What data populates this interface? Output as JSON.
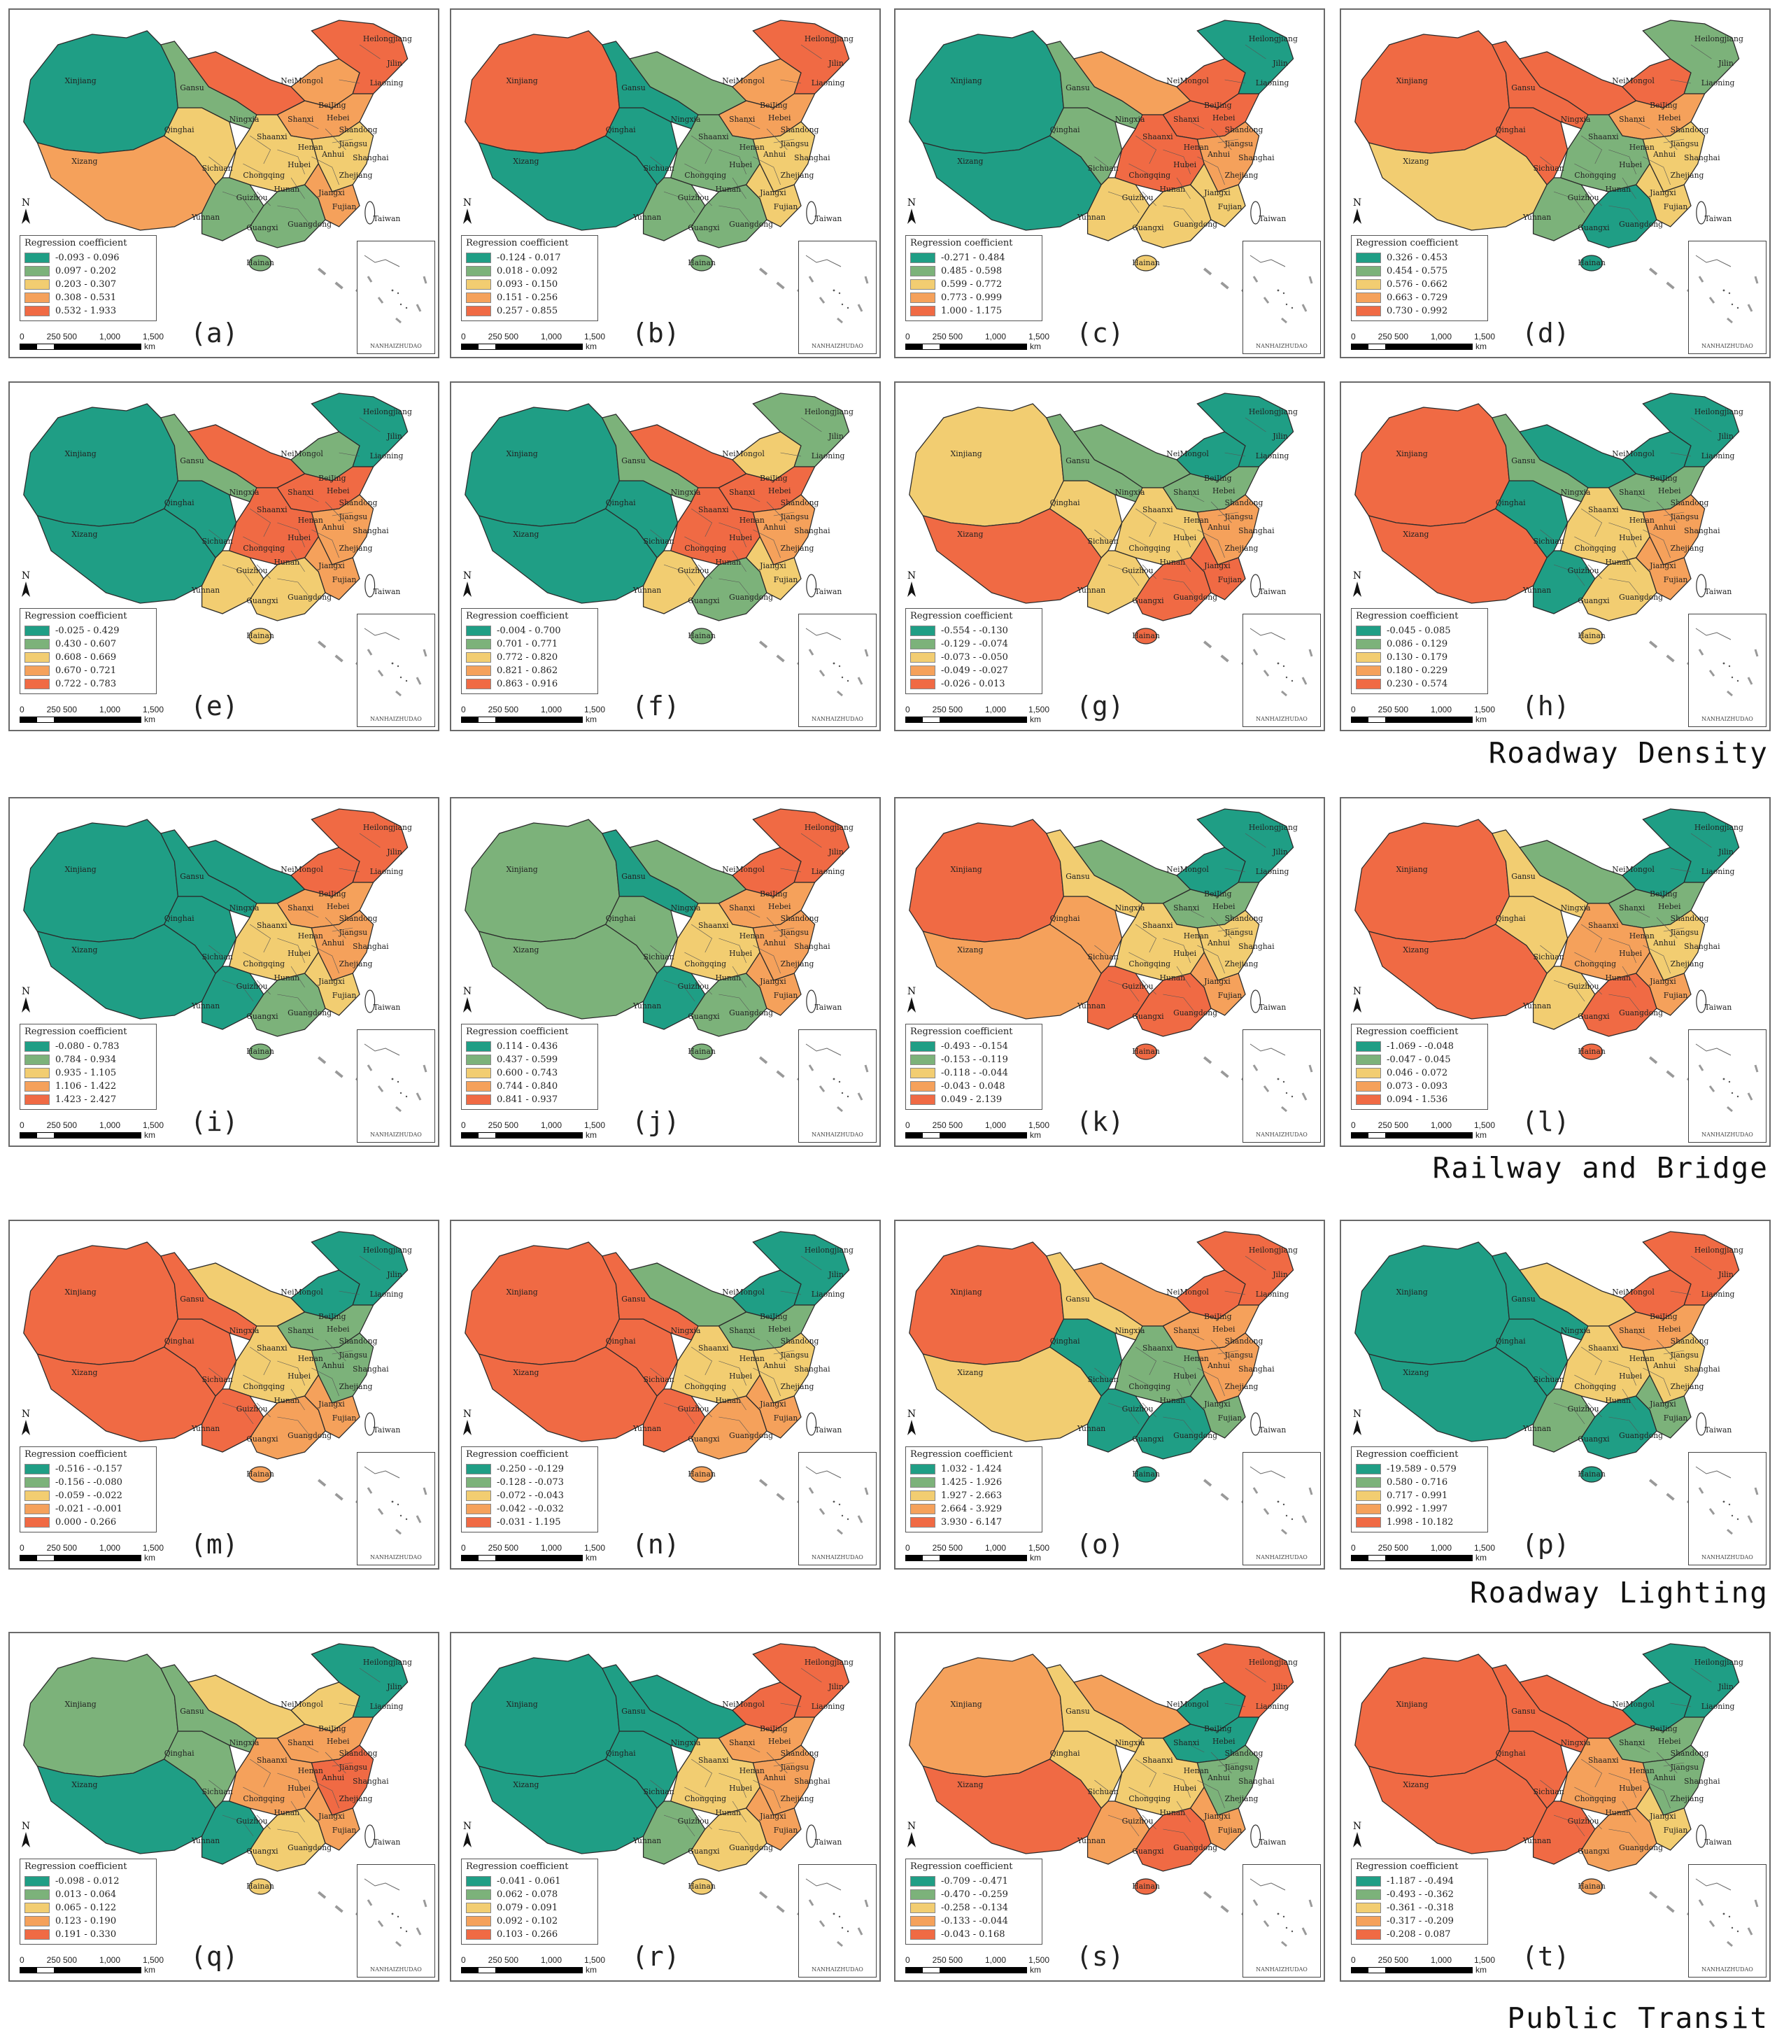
{
  "legend_title": "Regression coefficient",
  "inset_title": "NANHAIZHUDAO",
  "north_label": "N",
  "scale": {
    "ticks": [
      "0",
      "250 500",
      "1,000",
      "1,500"
    ],
    "unit": "km"
  },
  "colors": [
    "#1f9e85",
    "#7cb27a",
    "#f2cd71",
    "#f5a15b",
    "#f06a44"
  ],
  "province_labels": [
    "Xinjiang",
    "Xizang",
    "Qinghai",
    "Gansu",
    "NeiMongol",
    "Heilongjiang",
    "Jilin",
    "Liaoning",
    "BeiJing",
    "Hebei",
    "Shanxi",
    "Shaanxi",
    "Ningxia",
    "Henan",
    "Shandong",
    "Sichuan",
    "Chongqing",
    "Hubei",
    "Anhui",
    "Jiangsu",
    "Shanghai",
    "Zhejiang",
    "Hunan",
    "Jiangxi",
    "Fujian",
    "Guizhou",
    "Yunnan",
    "Guangxi",
    "Guangdong",
    "Hainan",
    "Taiwan"
  ],
  "row_labels": [
    {
      "text": "Roadway Density",
      "after_row": 1
    },
    {
      "text": "Railway and Bridge",
      "after_row": 2
    },
    {
      "text": "Roadway Lighting",
      "after_row": 3
    },
    {
      "text": "Public Transit",
      "after_row": 4
    }
  ],
  "panels": [
    {
      "label": "(a)",
      "classes": [
        "-0.093 - 0.096",
        "0.097 - 0.202",
        "0.203 - 0.307",
        "0.308 - 0.531",
        "0.532 - 1.933"
      ],
      "colors_by_region": {
        "xinjiang": 0,
        "xizang": 3,
        "qinghai": 2,
        "gansu": 1,
        "neimeng_w": 4,
        "neimeng_e": 3,
        "northeast": 4,
        "north": 3,
        "central": 2,
        "southwest": 1,
        "south": 1,
        "east": 2,
        "southeast": 3
      }
    },
    {
      "label": "(b)",
      "classes": [
        "-0.124 - 0.017",
        "0.018 - 0.092",
        "0.093 - 0.150",
        "0.151 - 0.256",
        "0.257 - 0.855"
      ],
      "colors_by_region": {
        "xinjiang": 4,
        "xizang": 0,
        "qinghai": 0,
        "gansu": 0,
        "neimeng_w": 1,
        "neimeng_e": 3,
        "northeast": 4,
        "north": 3,
        "central": 1,
        "southwest": 1,
        "south": 1,
        "east": 2,
        "southeast": 2
      }
    },
    {
      "label": "(c)",
      "classes": [
        "-0.271 - 0.484",
        "0.485 - 0.598",
        "0.599 - 0.772",
        "0.773 - 0.999",
        "1.000 - 1.175"
      ],
      "colors_by_region": {
        "xinjiang": 0,
        "xizang": 0,
        "qinghai": 1,
        "gansu": 1,
        "neimeng_w": 3,
        "neimeng_e": 4,
        "northeast": 0,
        "north": 4,
        "central": 4,
        "southwest": 2,
        "south": 2,
        "east": 3,
        "southeast": 2
      }
    },
    {
      "label": "(d)",
      "classes": [
        "0.326 - 0.453",
        "0.454 - 0.575",
        "0.576 - 0.662",
        "0.663 - 0.729",
        "0.730 - 0.992"
      ],
      "colors_by_region": {
        "xinjiang": 4,
        "xizang": 2,
        "qinghai": 4,
        "gansu": 4,
        "neimeng_w": 4,
        "neimeng_e": 4,
        "northeast": 1,
        "north": 3,
        "central": 1,
        "southwest": 1,
        "south": 0,
        "east": 2,
        "southeast": 2
      }
    },
    {
      "label": "(e)",
      "classes": [
        "-0.025 - 0.429",
        "0.430 - 0.607",
        "0.608 - 0.669",
        "0.670 - 0.721",
        "0.722 - 0.783"
      ],
      "colors_by_region": {
        "xinjiang": 0,
        "xizang": 0,
        "qinghai": 0,
        "gansu": 1,
        "neimeng_w": 4,
        "neimeng_e": 1,
        "northeast": 0,
        "north": 4,
        "central": 4,
        "southwest": 2,
        "south": 2,
        "east": 3,
        "southeast": 3
      }
    },
    {
      "label": "(f)",
      "classes": [
        "-0.004 - 0.700",
        "0.701 - 0.771",
        "0.772 - 0.820",
        "0.821 - 0.862",
        "0.863 - 0.916"
      ],
      "colors_by_region": {
        "xinjiang": 0,
        "xizang": 0,
        "qinghai": 0,
        "gansu": 1,
        "neimeng_w": 4,
        "neimeng_e": 2,
        "northeast": 1,
        "north": 4,
        "central": 4,
        "southwest": 2,
        "south": 1,
        "east": 3,
        "southeast": 2
      }
    },
    {
      "label": "(g)",
      "classes": [
        "-0.554 - -0.130",
        "-0.129 - -0.074",
        "-0.073 - -0.050",
        "-0.049 - -0.027",
        "-0.026 - 0.013"
      ],
      "colors_by_region": {
        "xinjiang": 2,
        "xizang": 4,
        "qinghai": 2,
        "gansu": 1,
        "neimeng_w": 1,
        "neimeng_e": 0,
        "northeast": 0,
        "north": 1,
        "central": 2,
        "southwest": 2,
        "south": 4,
        "east": 3,
        "southeast": 4
      }
    },
    {
      "label": "(h)",
      "classes": [
        "-0.045 - 0.085",
        "0.086 - 0.129",
        "0.130 - 0.179",
        "0.180 - 0.229",
        "0.230 - 0.574"
      ],
      "colors_by_region": {
        "xinjiang": 4,
        "xizang": 4,
        "qinghai": 0,
        "gansu": 1,
        "neimeng_w": 0,
        "neimeng_e": 0,
        "northeast": 0,
        "north": 1,
        "central": 2,
        "southwest": 0,
        "south": 2,
        "east": 3,
        "southeast": 3
      }
    },
    {
      "label": "(i)",
      "classes": [
        "-0.080 - 0.783",
        "0.784 - 0.934",
        "0.935 - 1.105",
        "1.106 - 1.422",
        "1.423 - 2.427"
      ],
      "colors_by_region": {
        "xinjiang": 0,
        "xizang": 0,
        "qinghai": 0,
        "gansu": 0,
        "neimeng_w": 0,
        "neimeng_e": 4,
        "northeast": 4,
        "north": 3,
        "central": 2,
        "southwest": 0,
        "south": 1,
        "east": 3,
        "southeast": 2
      }
    },
    {
      "label": "(j)",
      "classes": [
        "0.114 - 0.436",
        "0.437 - 0.599",
        "0.600 - 0.743",
        "0.744 - 0.840",
        "0.841 - 0.937"
      ],
      "colors_by_region": {
        "xinjiang": 1,
        "xizang": 1,
        "qinghai": 1,
        "gansu": 0,
        "neimeng_w": 1,
        "neimeng_e": 4,
        "northeast": 4,
        "north": 3,
        "central": 2,
        "southwest": 0,
        "south": 1,
        "east": 3,
        "southeast": 3
      }
    },
    {
      "label": "(k)",
      "classes": [
        "-0.493 - -0.154",
        "-0.153 - -0.119",
        "-0.118 - -0.044",
        "-0.043 - 0.048",
        "0.049 - 2.139"
      ],
      "colors_by_region": {
        "xinjiang": 4,
        "xizang": 3,
        "qinghai": 3,
        "gansu": 2,
        "neimeng_w": 1,
        "neimeng_e": 0,
        "northeast": 0,
        "north": 1,
        "central": 2,
        "southwest": 4,
        "south": 4,
        "east": 2,
        "southeast": 3
      }
    },
    {
      "label": "(l)",
      "classes": [
        "-1.069 - -0.048",
        "-0.047 - 0.045",
        "0.046 - 0.072",
        "0.073 - 0.093",
        "0.094 - 1.536"
      ],
      "colors_by_region": {
        "xinjiang": 4,
        "xizang": 4,
        "qinghai": 2,
        "gansu": 2,
        "neimeng_w": 1,
        "neimeng_e": 0,
        "northeast": 0,
        "north": 1,
        "central": 3,
        "southwest": 2,
        "south": 4,
        "east": 2,
        "southeast": 3
      }
    },
    {
      "label": "(m)",
      "classes": [
        "-0.516 - -0.157",
        "-0.156 - -0.080",
        "-0.059 - -0.022",
        "-0.021 - -0.001",
        "0.000 - 0.266"
      ],
      "colors_by_region": {
        "xinjiang": 4,
        "xizang": 4,
        "qinghai": 4,
        "gansu": 4,
        "neimeng_w": 2,
        "neimeng_e": 0,
        "northeast": 0,
        "north": 1,
        "central": 2,
        "southwest": 4,
        "south": 3,
        "east": 1,
        "southeast": 3
      }
    },
    {
      "label": "(n)",
      "classes": [
        "-0.250 - -0.129",
        "-0.128 - -0.073",
        "-0.072 - -0.043",
        "-0.042 - -0.032",
        "-0.031 - 1.195"
      ],
      "colors_by_region": {
        "xinjiang": 4,
        "xizang": 4,
        "qinghai": 4,
        "gansu": 4,
        "neimeng_w": 1,
        "neimeng_e": 0,
        "northeast": 0,
        "north": 1,
        "central": 2,
        "southwest": 4,
        "south": 3,
        "east": 2,
        "southeast": 3
      }
    },
    {
      "label": "(o)",
      "classes": [
        "1.032 - 1.424",
        "1.425 - 1.926",
        "1.927 - 2.663",
        "2.664 - 3.929",
        "3.930 - 6.147"
      ],
      "colors_by_region": {
        "xinjiang": 4,
        "xizang": 2,
        "qinghai": 0,
        "gansu": 2,
        "neimeng_w": 3,
        "neimeng_e": 4,
        "northeast": 4,
        "north": 3,
        "central": 1,
        "southwest": 0,
        "south": 0,
        "east": 3,
        "southeast": 1
      }
    },
    {
      "label": "(p)",
      "classes": [
        "-19.589 - 0.579",
        "0.580 - 0.716",
        "0.717 - 0.991",
        "0.992 - 1.997",
        "1.998 - 10.182"
      ],
      "colors_by_region": {
        "xinjiang": 0,
        "xizang": 0,
        "qinghai": 0,
        "gansu": 0,
        "neimeng_w": 2,
        "neimeng_e": 4,
        "northeast": 4,
        "north": 3,
        "central": 2,
        "southwest": 1,
        "south": 0,
        "east": 2,
        "southeast": 1
      }
    },
    {
      "label": "(q)",
      "classes": [
        "-0.098 - 0.012",
        "0.013 - 0.064",
        "0.065 - 0.122",
        "0.123 - 0.190",
        "0.191 - 0.330"
      ],
      "colors_by_region": {
        "xinjiang": 1,
        "xizang": 0,
        "qinghai": 1,
        "gansu": 1,
        "neimeng_w": 2,
        "neimeng_e": 2,
        "northeast": 0,
        "north": 3,
        "central": 3,
        "southwest": 0,
        "south": 2,
        "east": 4,
        "southeast": 3
      }
    },
    {
      "label": "(r)",
      "classes": [
        "-0.041 - 0.061",
        "0.062 - 0.078",
        "0.079 - 0.091",
        "0.092 - 0.102",
        "0.103 - 0.266"
      ],
      "colors_by_region": {
        "xinjiang": 0,
        "xizang": 0,
        "qinghai": 0,
        "gansu": 0,
        "neimeng_w": 0,
        "neimeng_e": 4,
        "northeast": 4,
        "north": 3,
        "central": 2,
        "southwest": 1,
        "south": 2,
        "east": 3,
        "southeast": 3
      }
    },
    {
      "label": "(s)",
      "classes": [
        "-0.709 - -0.471",
        "-0.470 - -0.259",
        "-0.258 - -0.134",
        "-0.133 - -0.044",
        "-0.043 - 0.168"
      ],
      "colors_by_region": {
        "xinjiang": 3,
        "xizang": 4,
        "qinghai": 2,
        "gansu": 2,
        "neimeng_w": 3,
        "neimeng_e": 0,
        "northeast": 4,
        "north": 0,
        "central": 2,
        "southwest": 3,
        "south": 4,
        "east": 1,
        "southeast": 3
      }
    },
    {
      "label": "(t)",
      "classes": [
        "-1.187 - -0.494",
        "-0.493 - -0.362",
        "-0.361 - -0.318",
        "-0.317 - -0.209",
        "-0.208 - 0.087"
      ],
      "colors_by_region": {
        "xinjiang": 4,
        "xizang": 4,
        "qinghai": 4,
        "gansu": 4,
        "neimeng_w": 4,
        "neimeng_e": 0,
        "northeast": 0,
        "north": 1,
        "central": 3,
        "southwest": 4,
        "south": 3,
        "east": 1,
        "southeast": 2
      }
    }
  ]
}
